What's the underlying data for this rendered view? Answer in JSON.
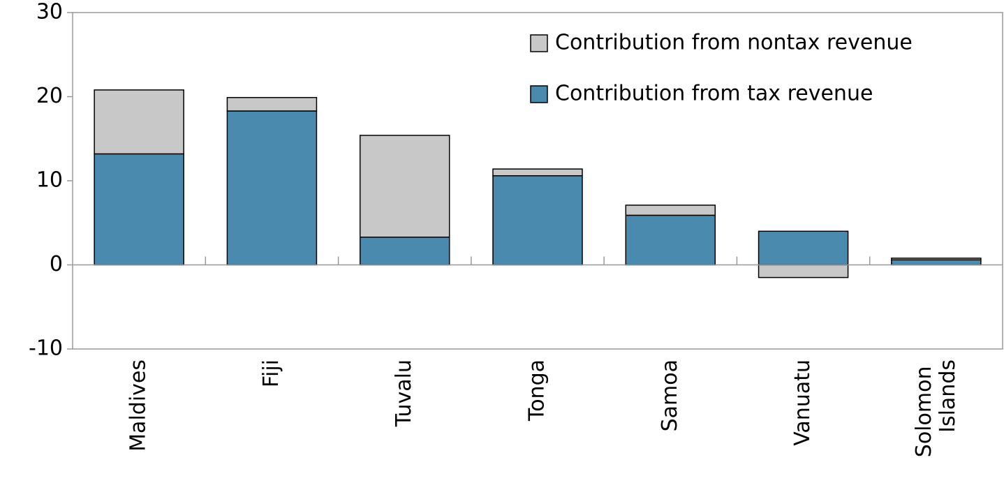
{
  "chart_data": {
    "type": "stacked_bar",
    "categories": [
      "Maldives",
      "Fiji",
      "Tuvalu",
      "Tonga",
      "Samoa",
      "Vanuatu",
      "Solomon Islands"
    ],
    "series": [
      {
        "name": "Contribution from tax revenue",
        "color": "#4a8aaf",
        "values": [
          13.2,
          18.3,
          3.3,
          10.6,
          5.9,
          4.0,
          0.6
        ]
      },
      {
        "name": "Contribution from nontax revenue",
        "color": "#c8c8c8",
        "values": [
          7.6,
          1.6,
          12.1,
          0.8,
          1.2,
          -1.5,
          0.2
        ]
      }
    ],
    "ylim": [
      -10,
      30
    ],
    "yticks": [
      -10,
      0,
      10,
      20,
      30
    ],
    "legend": "upper right"
  }
}
